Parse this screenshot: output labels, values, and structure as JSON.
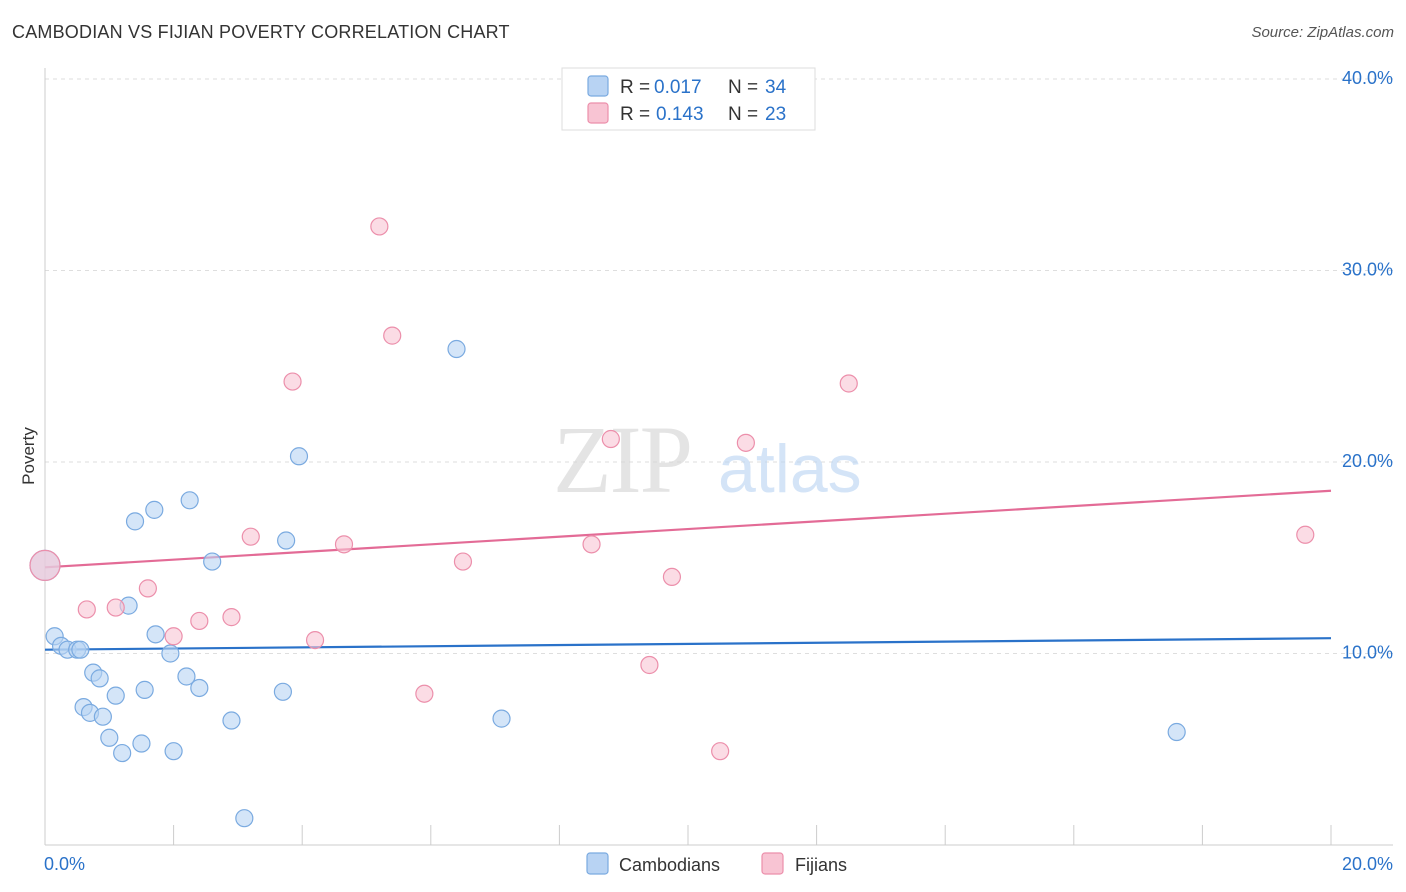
{
  "header": {
    "title": "CAMBODIAN VS FIJIAN POVERTY CORRELATION CHART",
    "source": "Source: ZipAtlas.com"
  },
  "chart_data": {
    "type": "scatter",
    "title": "CAMBODIAN VS FIJIAN POVERTY CORRELATION CHART",
    "xlabel": "",
    "ylabel": "Poverty",
    "xlim": [
      0,
      20
    ],
    "ylim": [
      0,
      40
    ],
    "x_tick_labels": [
      "0.0%",
      "20.0%"
    ],
    "y_ticks": [
      10,
      20,
      30,
      40
    ],
    "y_tick_labels": [
      "10.0%",
      "20.0%",
      "30.0%",
      "40.0%"
    ],
    "grid": true,
    "legend_position": "top-center",
    "watermark": {
      "zip": "ZIP",
      "atlas": "atlas"
    },
    "colors": {
      "cambodians_fill": "#b8d3f3",
      "cambodians_stroke": "#7aaae0",
      "cambodians_line": "#2a72c9",
      "fijians_fill": "#f8c4d3",
      "fijians_stroke": "#ec8fab",
      "fijians_line": "#e36b96",
      "value_text": "#2a72c9"
    },
    "series": [
      {
        "name": "Cambodians",
        "r_label": "R =",
        "r_value": "0.017",
        "n_label": "N =",
        "n_value": "34",
        "trend": {
          "x": [
            0,
            20
          ],
          "y": [
            10.2,
            10.8
          ]
        },
        "points": [
          {
            "x": 0.0,
            "y": 14.6,
            "big": true
          },
          {
            "x": 0.15,
            "y": 10.9
          },
          {
            "x": 0.25,
            "y": 10.4
          },
          {
            "x": 0.35,
            "y": 10.2
          },
          {
            "x": 0.5,
            "y": 10.2
          },
          {
            "x": 0.75,
            "y": 9.0
          },
          {
            "x": 0.85,
            "y": 8.7
          },
          {
            "x": 0.6,
            "y": 7.2
          },
          {
            "x": 0.7,
            "y": 6.9
          },
          {
            "x": 0.9,
            "y": 6.7
          },
          {
            "x": 1.1,
            "y": 7.8
          },
          {
            "x": 1.0,
            "y": 5.6
          },
          {
            "x": 1.2,
            "y": 4.8
          },
          {
            "x": 1.5,
            "y": 5.3
          },
          {
            "x": 1.55,
            "y": 8.1
          },
          {
            "x": 1.3,
            "y": 12.5
          },
          {
            "x": 1.4,
            "y": 16.9
          },
          {
            "x": 1.7,
            "y": 17.5
          },
          {
            "x": 1.72,
            "y": 11.0
          },
          {
            "x": 1.95,
            "y": 10.0
          },
          {
            "x": 2.0,
            "y": 4.9
          },
          {
            "x": 2.2,
            "y": 8.8
          },
          {
            "x": 2.25,
            "y": 18.0
          },
          {
            "x": 2.4,
            "y": 8.2
          },
          {
            "x": 2.6,
            "y": 14.8
          },
          {
            "x": 2.9,
            "y": 6.5
          },
          {
            "x": 3.1,
            "y": 1.4
          },
          {
            "x": 3.7,
            "y": 8.0
          },
          {
            "x": 3.75,
            "y": 15.9
          },
          {
            "x": 3.95,
            "y": 20.3
          },
          {
            "x": 6.4,
            "y": 25.9
          },
          {
            "x": 7.1,
            "y": 6.6
          },
          {
            "x": 17.6,
            "y": 5.9
          },
          {
            "x": 0.55,
            "y": 10.2
          }
        ]
      },
      {
        "name": "Fijians",
        "r_label": "R =",
        "r_value": "0.143",
        "n_label": "N =",
        "n_value": "23",
        "trend": {
          "x": [
            0,
            20
          ],
          "y": [
            14.5,
            18.5
          ]
        },
        "points": [
          {
            "x": 0.0,
            "y": 14.6,
            "big": true
          },
          {
            "x": 0.65,
            "y": 12.3
          },
          {
            "x": 1.1,
            "y": 12.4
          },
          {
            "x": 1.6,
            "y": 13.4
          },
          {
            "x": 2.0,
            "y": 10.9
          },
          {
            "x": 2.4,
            "y": 11.7
          },
          {
            "x": 2.9,
            "y": 11.9
          },
          {
            "x": 3.2,
            "y": 16.1
          },
          {
            "x": 3.85,
            "y": 24.2
          },
          {
            "x": 4.2,
            "y": 10.7
          },
          {
            "x": 4.65,
            "y": 15.7
          },
          {
            "x": 5.2,
            "y": 32.3
          },
          {
            "x": 5.4,
            "y": 26.6
          },
          {
            "x": 5.9,
            "y": 7.9
          },
          {
            "x": 6.5,
            "y": 14.8
          },
          {
            "x": 8.5,
            "y": 15.7
          },
          {
            "x": 8.8,
            "y": 21.2
          },
          {
            "x": 9.4,
            "y": 9.4
          },
          {
            "x": 9.75,
            "y": 14.0
          },
          {
            "x": 10.5,
            "y": 4.9
          },
          {
            "x": 10.9,
            "y": 21.0
          },
          {
            "x": 12.5,
            "y": 24.1
          },
          {
            "x": 19.6,
            "y": 16.2
          }
        ]
      }
    ]
  }
}
